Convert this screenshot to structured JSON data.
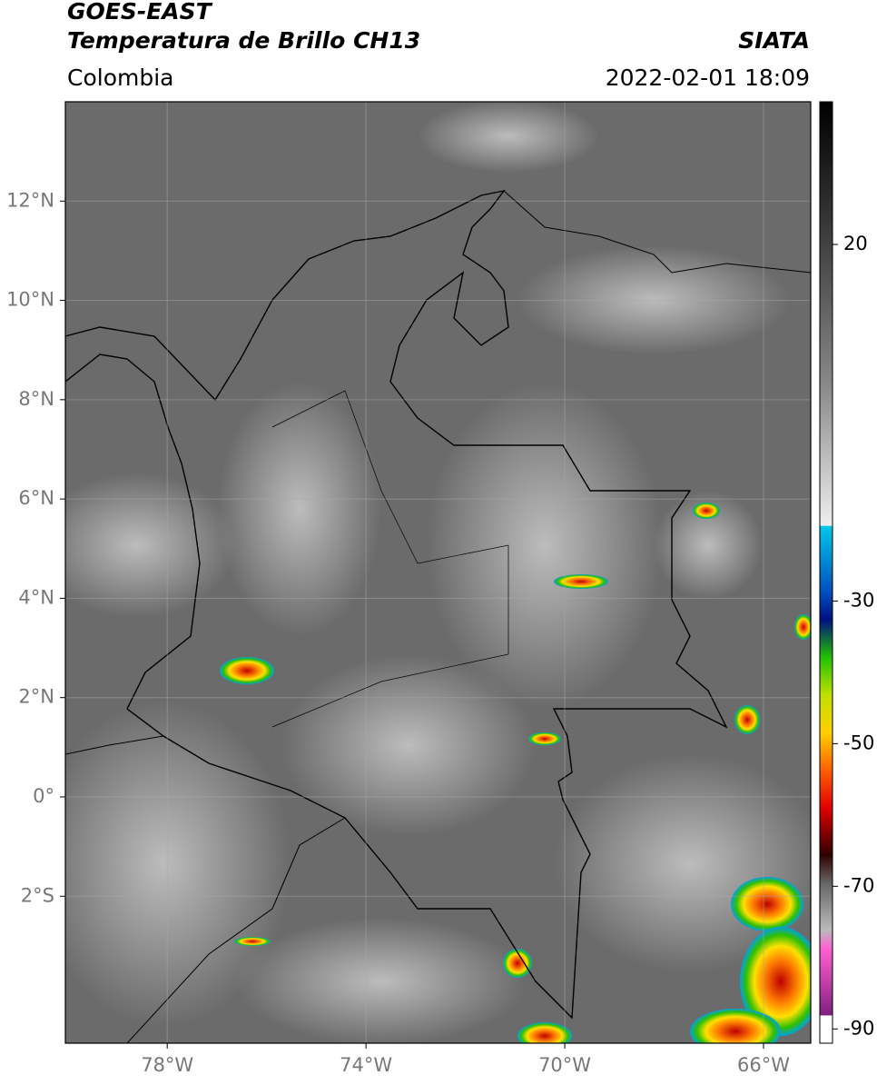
{
  "header": {
    "title": "GOES-EAST",
    "subtitle": "Temperatura de Brillo CH13",
    "source": "SIATA",
    "region": "Colombia",
    "datetime": "2022-02-01 18:09"
  },
  "map": {
    "lon_range": [
      -80.05,
      -65.05
    ],
    "lat_range": [
      -4.96,
      14.0
    ],
    "lon_ticks": [
      {
        "value": -78,
        "label": "78°W"
      },
      {
        "value": -74,
        "label": "74°W"
      },
      {
        "value": -70,
        "label": "70°W"
      },
      {
        "value": -66,
        "label": "66°W"
      }
    ],
    "lat_ticks": [
      {
        "value": 12,
        "label": "12°N"
      },
      {
        "value": 10,
        "label": "10°N"
      },
      {
        "value": 8,
        "label": "8°N"
      },
      {
        "value": 6,
        "label": "6°N"
      },
      {
        "value": 4,
        "label": "4°N"
      },
      {
        "value": 2,
        "label": "2°N"
      },
      {
        "value": 0,
        "label": "0°"
      },
      {
        "value": -2,
        "label": "2°S"
      }
    ],
    "colorbar": {
      "range": [
        -92,
        40
      ],
      "ticks": [
        20,
        -30,
        -50,
        -70,
        -90
      ]
    }
  }
}
